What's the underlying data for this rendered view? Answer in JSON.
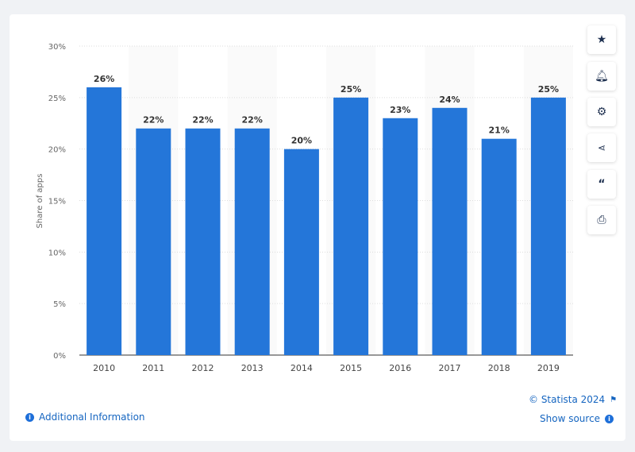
{
  "chart_data": {
    "type": "bar",
    "categories": [
      "2010",
      "2011",
      "2012",
      "2013",
      "2014",
      "2015",
      "2016",
      "2017",
      "2018",
      "2019"
    ],
    "values": [
      26,
      22,
      22,
      22,
      20,
      25,
      23,
      24,
      21,
      25
    ],
    "data_labels": [
      "26%",
      "22%",
      "22%",
      "22%",
      "20%",
      "25%",
      "23%",
      "24%",
      "21%",
      "25%"
    ],
    "ylabel": "Share of apps",
    "ylim": [
      0,
      30
    ],
    "yticks": [
      "0%",
      "5%",
      "10%",
      "15%",
      "20%",
      "25%",
      "30%"
    ],
    "grid": true,
    "bar_color": "#2476d9"
  },
  "toolbar": {
    "icons": [
      "star-icon",
      "bell-icon",
      "gear-icon",
      "share-icon",
      "quote-icon",
      "print-icon"
    ]
  },
  "footer": {
    "copyright": "© Statista 2024",
    "show_source": "Show source",
    "additional_info": "Additional Information"
  }
}
